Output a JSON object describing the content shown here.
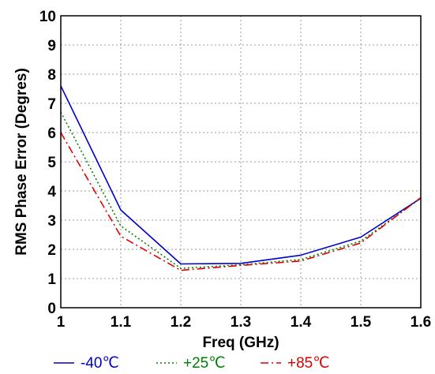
{
  "chart_data": {
    "type": "line",
    "xlabel": "Freq (GHz)",
    "ylabel": "RMS Phase Error (Degres)",
    "xlim": [
      1.0,
      1.6
    ],
    "ylim": [
      0,
      10
    ],
    "x_ticks": [
      "1",
      "1.1",
      "1.2",
      "1.3",
      "1.4",
      "1.5",
      "1.6"
    ],
    "y_ticks": [
      "0",
      "1",
      "2",
      "3",
      "4",
      "5",
      "6",
      "7",
      "8",
      "9",
      "10"
    ],
    "grid": true,
    "legend_position": "bottom",
    "series": [
      {
        "name": "-40℃",
        "color": "#0000cc",
        "dash": "solid",
        "x": [
          1.0,
          1.1,
          1.2,
          1.3,
          1.4,
          1.5,
          1.6
        ],
        "y": [
          7.6,
          3.35,
          1.5,
          1.52,
          1.8,
          2.42,
          3.75
        ]
      },
      {
        "name": "+25℃",
        "color": "#008000",
        "dash": "dotted",
        "x": [
          1.0,
          1.1,
          1.2,
          1.3,
          1.4,
          1.5,
          1.6
        ],
        "y": [
          6.7,
          2.8,
          1.35,
          1.47,
          1.65,
          2.28,
          3.75
        ]
      },
      {
        "name": "+85℃",
        "color": "#dd0000",
        "dash": "dashdot",
        "x": [
          1.0,
          1.1,
          1.2,
          1.3,
          1.4,
          1.5,
          1.6
        ],
        "y": [
          6.0,
          2.45,
          1.28,
          1.45,
          1.6,
          2.22,
          3.77
        ]
      }
    ]
  }
}
